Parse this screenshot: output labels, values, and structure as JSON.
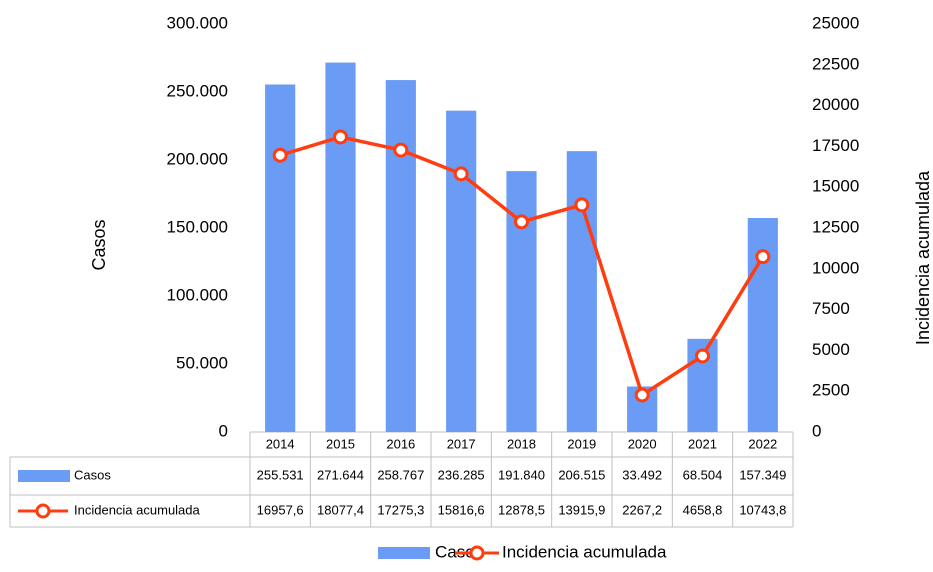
{
  "chart_data": {
    "type": "bar",
    "categories": [
      "2014",
      "2015",
      "2016",
      "2017",
      "2018",
      "2019",
      "2020",
      "2021",
      "2022"
    ],
    "series": [
      {
        "name": "Casos",
        "color": "#6b9cf5",
        "values": [
          255531,
          271644,
          258767,
          236285,
          191840,
          206515,
          33492,
          68504,
          157349
        ],
        "value_labels": [
          "255.531",
          "271.644",
          "258.767",
          "236.285",
          "191.840",
          "206.515",
          "33.492",
          "68.504",
          "157.349"
        ]
      },
      {
        "name": "Incidencia acumulada",
        "type": "line",
        "axis": "y2",
        "color": "#ff3d10",
        "values": [
          16957.6,
          18077.4,
          17275.3,
          15816.6,
          12878.5,
          13915.9,
          2267.2,
          4658.8,
          10743.8
        ],
        "value_labels": [
          "16957,6",
          "18077,4",
          "17275,3",
          "15816,6",
          "12878,5",
          "13915,9",
          "2267,2",
          "4658,8",
          "10743,8"
        ]
      }
    ],
    "ylabel": "Casos",
    "y2label": "Incidencia acumulada",
    "ylim": [
      0,
      300000
    ],
    "yticks": [
      0,
      {
        "value": 50000,
        "label": "50.000"
      },
      {
        "value": 100000,
        "label": "100.000"
      },
      {
        "value": 150000,
        "label": "150.000"
      },
      {
        "value": 200000,
        "label": "200.000"
      },
      {
        "value": 250000,
        "label": "250.000"
      },
      {
        "value": 300000,
        "label": "300.000"
      }
    ],
    "y2lim": [
      0,
      25000
    ],
    "y2ticks": [
      0,
      2500,
      5000,
      7500,
      10000,
      12500,
      15000,
      17500,
      20000,
      22500,
      25000
    ],
    "legend": "bottom"
  }
}
